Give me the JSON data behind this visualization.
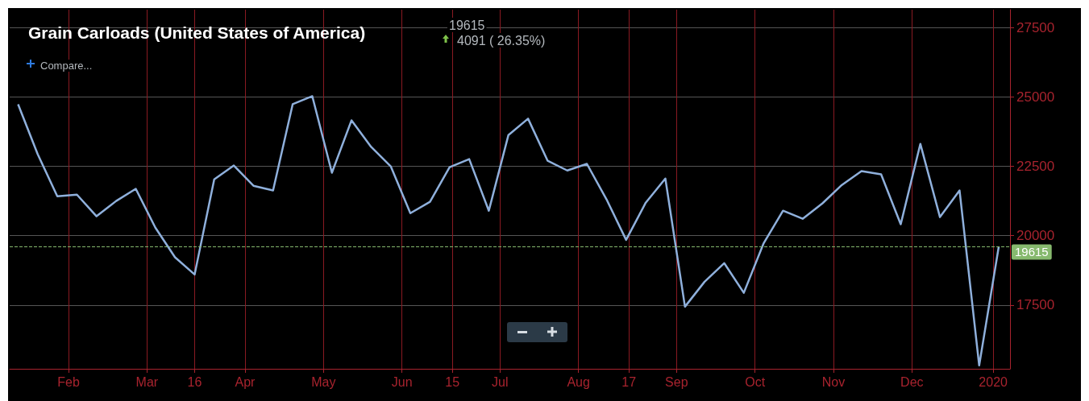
{
  "chart_data": {
    "type": "line",
    "title": "Grain Carloads (United States of America)",
    "annotations": [
      "19615",
      "4091 ( 26.35%)",
      "Compare..."
    ],
    "x": [
      "2019-01-18",
      "2019-01-25",
      "2019-02-01",
      "2019-02-08",
      "2019-02-15",
      "2019-02-22",
      "2019-03-01",
      "2019-03-08",
      "2019-03-15",
      "2019-03-22",
      "2019-03-29",
      "2019-04-05",
      "2019-04-12",
      "2019-04-19",
      "2019-04-26",
      "2019-05-03",
      "2019-05-10",
      "2019-05-17",
      "2019-05-24",
      "2019-05-31",
      "2019-06-07",
      "2019-06-14",
      "2019-06-21",
      "2019-06-28",
      "2019-07-05",
      "2019-07-12",
      "2019-07-19",
      "2019-07-26",
      "2019-08-02",
      "2019-08-09",
      "2019-08-16",
      "2019-08-23",
      "2019-08-30",
      "2019-09-06",
      "2019-09-13",
      "2019-09-20",
      "2019-09-27",
      "2019-10-04",
      "2019-10-11",
      "2019-10-18",
      "2019-10-25",
      "2019-11-01",
      "2019-11-08",
      "2019-11-15",
      "2019-11-22",
      "2019-11-29",
      "2019-12-06",
      "2019-12-13",
      "2019-12-20",
      "2019-12-27",
      "2020-01-03"
    ],
    "series": [
      {
        "color": "#8fb0dc",
        "values": [
          24740,
          22940,
          21420,
          21480,
          20700,
          21250,
          21690,
          20290,
          19220,
          18600,
          22030,
          22530,
          21800,
          21630,
          24740,
          25030,
          22270,
          24160,
          23200,
          22500,
          20810,
          21220,
          22470,
          22760,
          20900,
          23630,
          24220,
          22700,
          22350,
          22590,
          21310,
          19850,
          21190,
          22060,
          17440,
          18340,
          19010,
          17940,
          19710,
          20900,
          20610,
          21160,
          21830,
          22330,
          22210,
          20410,
          23310,
          20670,
          21630,
          15320,
          19615
        ]
      }
    ],
    "xlim": [
      "2019-01-15",
      "2020-01-07"
    ],
    "xticks": [
      {
        "value": "2019-02-05",
        "label": "Feb"
      },
      {
        "value": "2019-03-05",
        "label": "Mar"
      },
      {
        "value": "2019-03-22",
        "label": "16"
      },
      {
        "value": "2019-04-09",
        "label": "Apr"
      },
      {
        "value": "2019-05-07",
        "label": "May"
      },
      {
        "value": "2019-06-04",
        "label": "Jun"
      },
      {
        "value": "2019-06-22",
        "label": "15"
      },
      {
        "value": "2019-07-09",
        "label": "Jul"
      },
      {
        "value": "2019-08-06",
        "label": "Aug"
      },
      {
        "value": "2019-08-24",
        "label": "17"
      },
      {
        "value": "2019-09-10",
        "label": "Sep"
      },
      {
        "value": "2019-10-08",
        "label": "Oct"
      },
      {
        "value": "2019-11-05",
        "label": "Nov"
      },
      {
        "value": "2019-12-03",
        "label": "Dec"
      },
      {
        "value": "2020-01-01",
        "label": "2020"
      }
    ],
    "ylim": [
      15200,
      28150
    ],
    "yticks": [
      17500,
      20000,
      22500,
      25000,
      27500
    ],
    "ref_lines": [
      {
        "axis": "y",
        "value": 19615,
        "label": "19615",
        "color": "#86b96e",
        "line_style": "dashed"
      }
    ],
    "grid": true
  }
}
